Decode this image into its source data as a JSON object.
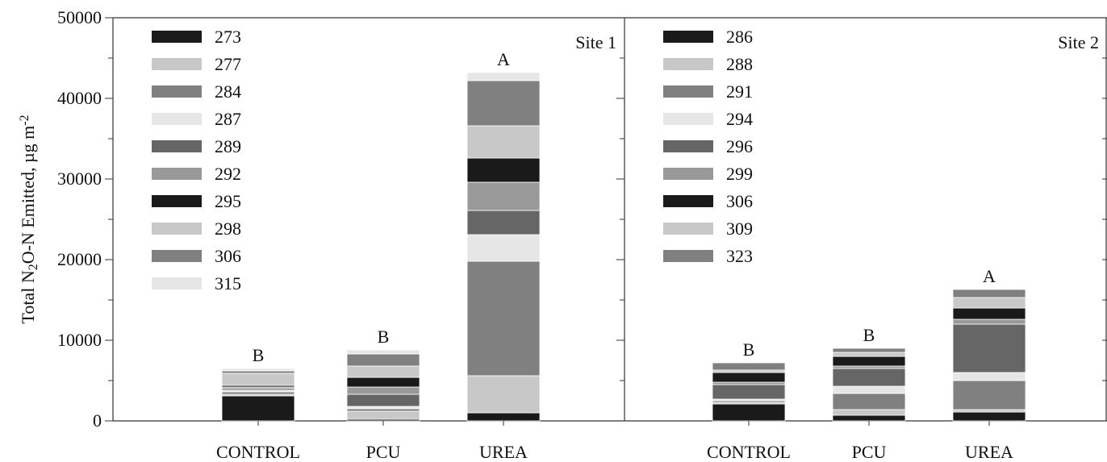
{
  "y_axis_title": {
    "prefix": "Total N",
    "sub1": "2",
    "mid": "O-N Emitted, µg m",
    "sup": "-2"
  },
  "chart_data": [
    {
      "type": "bar",
      "stacked": true,
      "panel_label": "Site 1",
      "categories": [
        "CONTROL",
        "PCU",
        "UREA"
      ],
      "ylim": [
        0,
        50000
      ],
      "yticks": [
        0,
        10000,
        20000,
        30000,
        40000,
        50000
      ],
      "significance": [
        "B",
        "B",
        "A"
      ],
      "legend_position": "top-left",
      "series": [
        {
          "name": "273",
          "color": "#1a1a1a",
          "values": [
            3100,
            200,
            1000
          ]
        },
        {
          "name": "277",
          "color": "#c8c8c8",
          "values": [
            200,
            1000,
            4600
          ]
        },
        {
          "name": "284",
          "color": "#808080",
          "values": [
            300,
            300,
            14200
          ]
        },
        {
          "name": "287",
          "color": "#e6e6e6",
          "values": [
            200,
            300,
            3300
          ]
        },
        {
          "name": "289",
          "color": "#666666",
          "values": [
            200,
            1500,
            3000
          ]
        },
        {
          "name": "292",
          "color": "#999999",
          "values": [
            200,
            900,
            3500
          ]
        },
        {
          "name": "295",
          "color": "#1a1a1a",
          "values": [
            200,
            1200,
            3000
          ]
        },
        {
          "name": "298",
          "color": "#c8c8c8",
          "values": [
            1500,
            1400,
            4000
          ]
        },
        {
          "name": "306",
          "color": "#808080",
          "values": [
            300,
            1500,
            5600
          ]
        },
        {
          "name": "315",
          "color": "#e6e6e6",
          "values": [
            300,
            500,
            1000
          ]
        }
      ]
    },
    {
      "type": "bar",
      "stacked": true,
      "panel_label": "Site 2",
      "categories": [
        "CONTROL",
        "PCU",
        "UREA"
      ],
      "ylim": [
        0,
        50000
      ],
      "significance": [
        "B",
        "B",
        "A"
      ],
      "legend_position": "top-left",
      "series": [
        {
          "name": "286",
          "color": "#1a1a1a",
          "values": [
            2100,
            700,
            1100
          ]
        },
        {
          "name": "288",
          "color": "#c8c8c8",
          "values": [
            200,
            700,
            300
          ]
        },
        {
          "name": "291",
          "color": "#808080",
          "values": [
            200,
            2000,
            3600
          ]
        },
        {
          "name": "294",
          "color": "#e6e6e6",
          "values": [
            200,
            900,
            1000
          ]
        },
        {
          "name": "296",
          "color": "#666666",
          "values": [
            1800,
            2200,
            6000
          ]
        },
        {
          "name": "299",
          "color": "#999999",
          "values": [
            300,
            300,
            600
          ]
        },
        {
          "name": "306",
          "color": "#1a1a1a",
          "values": [
            1200,
            1200,
            1400
          ]
        },
        {
          "name": "309",
          "color": "#c8c8c8",
          "values": [
            300,
            500,
            1300
          ]
        },
        {
          "name": "323",
          "color": "#808080",
          "values": [
            900,
            500,
            1000
          ]
        }
      ]
    }
  ]
}
